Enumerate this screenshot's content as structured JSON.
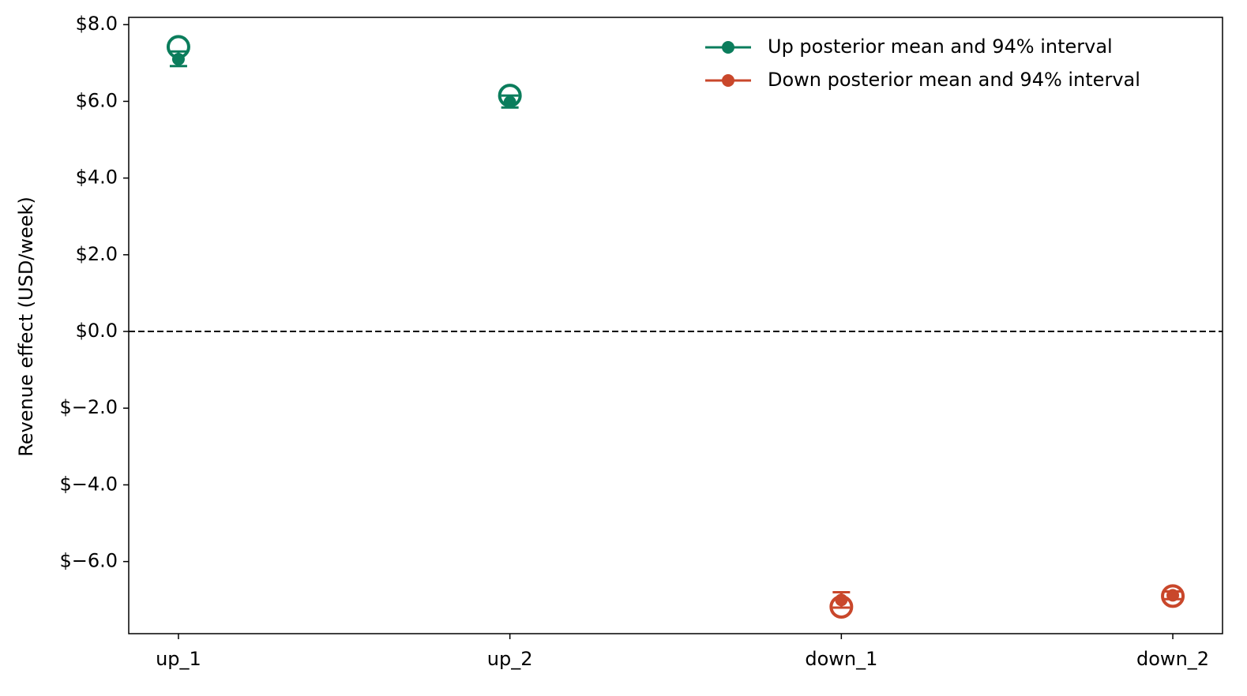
{
  "chart_data": {
    "type": "errorbar",
    "ylabel": "Revenue effect (USD/week)",
    "categories": [
      "up_1",
      "up_2",
      "down_1",
      "down_2"
    ],
    "series": [
      {
        "name": "Up posterior mean and 94% interval",
        "color": "#0b7d5c",
        "values": [
          7.1,
          5.98,
          null,
          null
        ],
        "lower": [
          6.92,
          5.84,
          null,
          null
        ],
        "upper": [
          7.3,
          6.15,
          null,
          null
        ],
        "reference_values": [
          7.42,
          6.15,
          null,
          null
        ]
      },
      {
        "name": "Down posterior mean and 94% interval",
        "color": "#c9472b",
        "values": [
          null,
          null,
          -7.0,
          -6.88
        ],
        "lower": [
          null,
          null,
          -7.2,
          -6.98
        ],
        "upper": [
          null,
          null,
          -6.8,
          -6.78
        ],
        "reference_values": [
          null,
          null,
          -7.18,
          -6.9
        ]
      }
    ],
    "xlim": [
      -0.15,
      3.15
    ],
    "ylim": [
      -7.88,
      8.19
    ],
    "yticks": [
      {
        "value": -6,
        "label": "$−6.0"
      },
      {
        "value": -4,
        "label": "$−4.0"
      },
      {
        "value": -2,
        "label": "$−2.0"
      },
      {
        "value": 0,
        "label": "$0.0"
      },
      {
        "value": 2,
        "label": "$2.0"
      },
      {
        "value": 4,
        "label": "$4.0"
      },
      {
        "value": 6,
        "label": "$6.0"
      },
      {
        "value": 8,
        "label": "$8.0"
      }
    ],
    "reference_line": 0,
    "legend": "upper right"
  }
}
